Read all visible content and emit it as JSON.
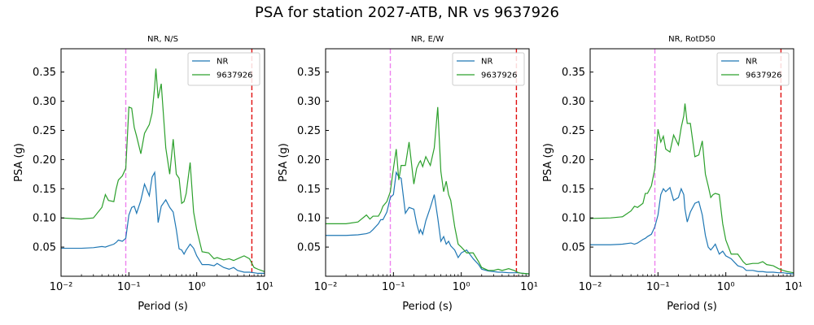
{
  "figure": {
    "title": "PSA for station 2027-ATB, NR vs 9637926"
  },
  "colors": {
    "nr": "#1f77b4",
    "event": "#2ca02c",
    "violet_line": "#ee82ee",
    "red_line": "#e01010",
    "axis": "#000000",
    "background": "#ffffff"
  },
  "chart_data": [
    {
      "type": "line",
      "title": "NR, N/S",
      "xlabel": "Period (s)",
      "ylabel": "PSA (g)",
      "xscale": "log",
      "xlim": [
        0.01,
        10
      ],
      "ylim": [
        0.0,
        0.39
      ],
      "xticks": [
        {
          "value": 0.01,
          "label": "10⁻²"
        },
        {
          "value": 0.1,
          "label": "10⁻¹"
        },
        {
          "value": 1,
          "label": "10⁰"
        },
        {
          "value": 10,
          "label": "10¹"
        }
      ],
      "yticks": [
        {
          "value": 0.05,
          "label": "0.05"
        },
        {
          "value": 0.1,
          "label": "0.10"
        },
        {
          "value": 0.15,
          "label": "0.15"
        },
        {
          "value": 0.2,
          "label": "0.20"
        },
        {
          "value": 0.25,
          "label": "0.25"
        },
        {
          "value": 0.3,
          "label": "0.30"
        },
        {
          "value": 0.35,
          "label": "0.35"
        }
      ],
      "legend": "top-right",
      "vlines": [
        {
          "x": 0.09,
          "style": "dashed",
          "color": "violet"
        },
        {
          "x": 6.5,
          "style": "dashed",
          "color": "red"
        }
      ],
      "series": [
        {
          "name": "NR",
          "color": "nr",
          "x": [
            0.01,
            0.02,
            0.03,
            0.04,
            0.045,
            0.05,
            0.06,
            0.065,
            0.07,
            0.08,
            0.09,
            0.1,
            0.11,
            0.12,
            0.13,
            0.15,
            0.17,
            0.2,
            0.22,
            0.24,
            0.25,
            0.27,
            0.3,
            0.35,
            0.4,
            0.45,
            0.5,
            0.55,
            0.6,
            0.65,
            0.7,
            0.8,
            0.9,
            1.0,
            1.2,
            1.5,
            1.8,
            2.0,
            2.5,
            3.0,
            3.5,
            4.0,
            5.0,
            6.0,
            7.0,
            8.0,
            10.0
          ],
          "y": [
            0.048,
            0.048,
            0.049,
            0.051,
            0.05,
            0.052,
            0.055,
            0.058,
            0.062,
            0.06,
            0.065,
            0.105,
            0.118,
            0.12,
            0.108,
            0.13,
            0.158,
            0.138,
            0.17,
            0.178,
            0.15,
            0.092,
            0.12,
            0.131,
            0.118,
            0.11,
            0.08,
            0.047,
            0.045,
            0.038,
            0.045,
            0.055,
            0.048,
            0.035,
            0.02,
            0.02,
            0.018,
            0.022,
            0.015,
            0.012,
            0.015,
            0.01,
            0.007,
            0.007,
            0.006,
            0.005,
            0.005
          ]
        },
        {
          "name": "9637926",
          "color": "event",
          "x": [
            0.01,
            0.02,
            0.03,
            0.04,
            0.045,
            0.05,
            0.06,
            0.065,
            0.07,
            0.08,
            0.09,
            0.1,
            0.11,
            0.12,
            0.13,
            0.15,
            0.17,
            0.2,
            0.22,
            0.24,
            0.25,
            0.27,
            0.3,
            0.35,
            0.4,
            0.45,
            0.5,
            0.55,
            0.6,
            0.65,
            0.7,
            0.8,
            0.9,
            1.0,
            1.2,
            1.5,
            1.8,
            2.0,
            2.5,
            3.0,
            3.5,
            4.0,
            5.0,
            6.0,
            7.0,
            8.0,
            10.0
          ],
          "y": [
            0.1,
            0.098,
            0.1,
            0.118,
            0.14,
            0.13,
            0.128,
            0.15,
            0.165,
            0.172,
            0.185,
            0.29,
            0.288,
            0.255,
            0.24,
            0.21,
            0.245,
            0.26,
            0.28,
            0.325,
            0.356,
            0.305,
            0.33,
            0.22,
            0.175,
            0.235,
            0.175,
            0.168,
            0.125,
            0.128,
            0.142,
            0.195,
            0.11,
            0.08,
            0.042,
            0.04,
            0.03,
            0.032,
            0.028,
            0.03,
            0.027,
            0.03,
            0.035,
            0.03,
            0.015,
            0.012,
            0.008
          ]
        }
      ]
    },
    {
      "type": "line",
      "title": "NR, E/W",
      "xlabel": "Period (s)",
      "ylabel": "PSA (g)",
      "xscale": "log",
      "xlim": [
        0.01,
        10
      ],
      "ylim": [
        0.0,
        0.39
      ],
      "xticks": [
        {
          "value": 0.01,
          "label": "10⁻²"
        },
        {
          "value": 0.1,
          "label": "10⁻¹"
        },
        {
          "value": 1,
          "label": "10⁰"
        },
        {
          "value": 10,
          "label": "10¹"
        }
      ],
      "yticks": [
        {
          "value": 0.05,
          "label": "0.05"
        },
        {
          "value": 0.1,
          "label": "0.10"
        },
        {
          "value": 0.15,
          "label": "0.15"
        },
        {
          "value": 0.2,
          "label": "0.20"
        },
        {
          "value": 0.25,
          "label": "0.25"
        },
        {
          "value": 0.3,
          "label": "0.30"
        },
        {
          "value": 0.35,
          "label": "0.35"
        }
      ],
      "legend": "top-right",
      "vlines": [
        {
          "x": 0.09,
          "style": "dashed",
          "color": "violet"
        },
        {
          "x": 6.5,
          "style": "dashed",
          "color": "red"
        }
      ],
      "series": [
        {
          "name": "NR",
          "color": "nr",
          "x": [
            0.01,
            0.02,
            0.03,
            0.04,
            0.045,
            0.05,
            0.06,
            0.065,
            0.07,
            0.08,
            0.09,
            0.1,
            0.11,
            0.12,
            0.13,
            0.15,
            0.17,
            0.2,
            0.22,
            0.24,
            0.25,
            0.27,
            0.3,
            0.35,
            0.4,
            0.45,
            0.5,
            0.55,
            0.6,
            0.65,
            0.7,
            0.8,
            0.9,
            1.0,
            1.2,
            1.5,
            1.8,
            2.0,
            2.5,
            3.0,
            3.5,
            4.0,
            5.0,
            6.0,
            7.0,
            8.0,
            10.0
          ],
          "y": [
            0.07,
            0.07,
            0.071,
            0.073,
            0.075,
            0.08,
            0.09,
            0.097,
            0.097,
            0.11,
            0.135,
            0.14,
            0.178,
            0.17,
            0.168,
            0.108,
            0.118,
            0.115,
            0.09,
            0.074,
            0.08,
            0.072,
            0.095,
            0.118,
            0.14,
            0.1,
            0.06,
            0.068,
            0.055,
            0.06,
            0.052,
            0.045,
            0.032,
            0.04,
            0.045,
            0.03,
            0.02,
            0.012,
            0.009,
            0.008,
            0.007,
            0.007,
            0.006,
            0.006,
            0.006,
            0.005,
            0.004
          ]
        },
        {
          "name": "9637926",
          "color": "event",
          "x": [
            0.01,
            0.02,
            0.03,
            0.04,
            0.045,
            0.05,
            0.06,
            0.065,
            0.07,
            0.08,
            0.09,
            0.1,
            0.11,
            0.12,
            0.13,
            0.15,
            0.17,
            0.2,
            0.22,
            0.24,
            0.25,
            0.27,
            0.3,
            0.35,
            0.4,
            0.45,
            0.5,
            0.55,
            0.6,
            0.65,
            0.7,
            0.8,
            0.9,
            1.0,
            1.2,
            1.5,
            1.8,
            2.0,
            2.5,
            3.0,
            3.5,
            4.0,
            5.0,
            6.0,
            7.0,
            8.0,
            10.0
          ],
          "y": [
            0.09,
            0.09,
            0.093,
            0.105,
            0.098,
            0.103,
            0.103,
            0.11,
            0.12,
            0.128,
            0.145,
            0.185,
            0.218,
            0.165,
            0.19,
            0.19,
            0.23,
            0.158,
            0.185,
            0.195,
            0.198,
            0.188,
            0.205,
            0.19,
            0.22,
            0.29,
            0.18,
            0.145,
            0.163,
            0.14,
            0.13,
            0.085,
            0.055,
            0.05,
            0.04,
            0.04,
            0.025,
            0.015,
            0.01,
            0.01,
            0.012,
            0.01,
            0.013,
            0.01,
            0.006,
            0.005,
            0.004
          ]
        }
      ]
    },
    {
      "type": "line",
      "title": "NR, RotD50",
      "xlabel": "Period (s)",
      "ylabel": "PSA (g)",
      "xscale": "log",
      "xlim": [
        0.01,
        10
      ],
      "ylim": [
        0.0,
        0.39
      ],
      "xticks": [
        {
          "value": 0.01,
          "label": "10⁻²"
        },
        {
          "value": 0.1,
          "label": "10⁻¹"
        },
        {
          "value": 1,
          "label": "10⁰"
        },
        {
          "value": 10,
          "label": "10¹"
        }
      ],
      "yticks": [
        {
          "value": 0.05,
          "label": "0.05"
        },
        {
          "value": 0.1,
          "label": "0.10"
        },
        {
          "value": 0.15,
          "label": "0.15"
        },
        {
          "value": 0.2,
          "label": "0.20"
        },
        {
          "value": 0.25,
          "label": "0.25"
        },
        {
          "value": 0.3,
          "label": "0.30"
        },
        {
          "value": 0.35,
          "label": "0.35"
        }
      ],
      "legend": "top-right",
      "vlines": [
        {
          "x": 0.09,
          "style": "dashed",
          "color": "violet"
        },
        {
          "x": 6.5,
          "style": "dashed",
          "color": "red"
        }
      ],
      "series": [
        {
          "name": "NR",
          "color": "nr",
          "x": [
            0.01,
            0.02,
            0.03,
            0.04,
            0.045,
            0.05,
            0.06,
            0.065,
            0.07,
            0.08,
            0.09,
            0.1,
            0.11,
            0.12,
            0.13,
            0.15,
            0.17,
            0.2,
            0.22,
            0.24,
            0.25,
            0.27,
            0.3,
            0.35,
            0.4,
            0.45,
            0.5,
            0.55,
            0.6,
            0.65,
            0.7,
            0.8,
            0.9,
            1.0,
            1.2,
            1.5,
            1.8,
            2.0,
            2.5,
            3.0,
            3.5,
            4.0,
            5.0,
            6.0,
            7.0,
            8.0,
            10.0
          ],
          "y": [
            0.054,
            0.054,
            0.055,
            0.057,
            0.055,
            0.057,
            0.063,
            0.065,
            0.068,
            0.072,
            0.085,
            0.105,
            0.14,
            0.15,
            0.145,
            0.152,
            0.13,
            0.135,
            0.15,
            0.14,
            0.115,
            0.093,
            0.11,
            0.125,
            0.128,
            0.105,
            0.07,
            0.05,
            0.045,
            0.05,
            0.055,
            0.038,
            0.043,
            0.035,
            0.03,
            0.018,
            0.015,
            0.01,
            0.01,
            0.008,
            0.008,
            0.007,
            0.007,
            0.006,
            0.006,
            0.005,
            0.004
          ]
        },
        {
          "name": "9637926",
          "color": "event",
          "x": [
            0.01,
            0.02,
            0.03,
            0.04,
            0.045,
            0.05,
            0.06,
            0.065,
            0.07,
            0.08,
            0.09,
            0.1,
            0.11,
            0.12,
            0.13,
            0.15,
            0.17,
            0.2,
            0.22,
            0.24,
            0.25,
            0.27,
            0.3,
            0.35,
            0.4,
            0.45,
            0.5,
            0.55,
            0.6,
            0.65,
            0.7,
            0.8,
            0.9,
            1.0,
            1.2,
            1.5,
            1.8,
            2.0,
            2.5,
            3.0,
            3.5,
            4.0,
            5.0,
            6.0,
            7.0,
            8.0,
            10.0
          ],
          "y": [
            0.099,
            0.1,
            0.102,
            0.112,
            0.12,
            0.118,
            0.125,
            0.142,
            0.142,
            0.155,
            0.185,
            0.252,
            0.23,
            0.24,
            0.218,
            0.213,
            0.242,
            0.225,
            0.255,
            0.275,
            0.296,
            0.262,
            0.262,
            0.205,
            0.208,
            0.232,
            0.175,
            0.155,
            0.135,
            0.14,
            0.142,
            0.14,
            0.09,
            0.062,
            0.038,
            0.038,
            0.025,
            0.02,
            0.022,
            0.022,
            0.025,
            0.02,
            0.018,
            0.013,
            0.01,
            0.008,
            0.006
          ]
        }
      ]
    }
  ]
}
